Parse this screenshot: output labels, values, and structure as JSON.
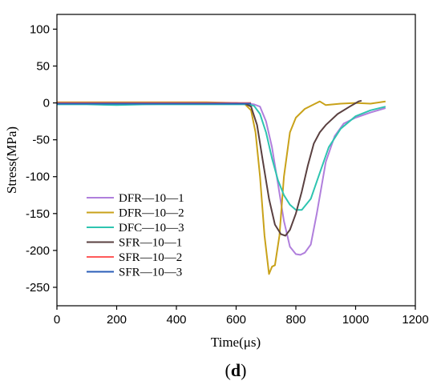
{
  "chart_data": {
    "type": "line",
    "title": "",
    "xlabel": "Time(μs)",
    "ylabel": "Stress(MPa)",
    "xlim": [
      0,
      1200
    ],
    "ylim": [
      -275,
      120
    ],
    "xticks": [
      0,
      200,
      400,
      600,
      800,
      1000,
      1200
    ],
    "yticks": [
      -250,
      -200,
      -150,
      -100,
      -50,
      0,
      50,
      100
    ],
    "grid": false,
    "legend_position": "lower-left",
    "caption": {
      "open": "(",
      "letter": "d",
      "close": ")"
    },
    "series": [
      {
        "name": "DFR—10—1",
        "color": "#b07fdc",
        "x": [
          0,
          100,
          200,
          300,
          400,
          500,
          600,
          640,
          660,
          680,
          700,
          720,
          740,
          760,
          780,
          800,
          815,
          830,
          850,
          870,
          900,
          930,
          960,
          1000,
          1050,
          1100
        ],
        "y": [
          -1,
          -1,
          -1,
          -2,
          -1,
          -1,
          -1,
          -1,
          -2,
          -5,
          -25,
          -60,
          -110,
          -160,
          -195,
          -205,
          -206,
          -203,
          -192,
          -150,
          -80,
          -45,
          -28,
          -20,
          -13,
          -7
        ]
      },
      {
        "name": "DFR—10—2",
        "color": "#c9a21a",
        "x": [
          0,
          100,
          200,
          300,
          400,
          500,
          600,
          630,
          650,
          665,
          680,
          695,
          710,
          720,
          730,
          745,
          760,
          780,
          800,
          830,
          860,
          880,
          900,
          950,
          1000,
          1050,
          1100
        ],
        "y": [
          1,
          1,
          1,
          1,
          1,
          1,
          0,
          -2,
          -10,
          -40,
          -100,
          -180,
          -232,
          -222,
          -220,
          -180,
          -100,
          -40,
          -20,
          -8,
          -2,
          2,
          -3,
          -1,
          0,
          -1,
          2
        ]
      },
      {
        "name": "DFC—10—3",
        "color": "#2ec4b0",
        "x": [
          0,
          100,
          200,
          300,
          400,
          500,
          600,
          640,
          660,
          680,
          700,
          720,
          740,
          760,
          780,
          800,
          820,
          850,
          880,
          910,
          950,
          1000,
          1050,
          1100
        ],
        "y": [
          -2,
          -2,
          -3,
          -2,
          -2,
          -2,
          -2,
          -2,
          -4,
          -15,
          -40,
          -75,
          -105,
          -125,
          -138,
          -145,
          -145,
          -130,
          -95,
          -60,
          -35,
          -18,
          -10,
          -5
        ]
      },
      {
        "name": "SFR—10—1",
        "color": "#5a4040",
        "x": [
          0,
          100,
          200,
          300,
          400,
          500,
          600,
          630,
          650,
          670,
          690,
          710,
          730,
          750,
          765,
          780,
          800,
          820,
          840,
          860,
          880,
          900,
          940,
          980,
          1010,
          1020
        ],
        "y": [
          0,
          0,
          0,
          0,
          0,
          0,
          0,
          -1,
          -5,
          -30,
          -80,
          -130,
          -165,
          -178,
          -180,
          -172,
          -150,
          -120,
          -85,
          -55,
          -40,
          -30,
          -15,
          -5,
          2,
          3
        ]
      },
      {
        "name": "SFR—10—2",
        "color": "#ff5a5a",
        "x": [
          0,
          100,
          200,
          300,
          400,
          500,
          600,
          650
        ],
        "y": [
          0,
          0,
          0,
          0,
          0,
          0,
          0,
          0
        ]
      },
      {
        "name": "SFR—10—3",
        "color": "#2a5db8",
        "x": [
          0,
          100,
          200,
          300,
          400,
          500,
          600,
          650
        ],
        "y": [
          -1,
          -1,
          -1,
          -1,
          -1,
          -1,
          -1,
          -1
        ]
      }
    ]
  }
}
